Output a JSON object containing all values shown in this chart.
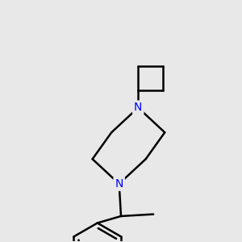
{
  "background_color": "#e8e8e8",
  "line_color": "#000000",
  "nitrogen_color": "#0000ff",
  "line_width": 1.8,
  "figsize": [
    3.0,
    3.0
  ],
  "dpi": 100,
  "font_size": 10
}
